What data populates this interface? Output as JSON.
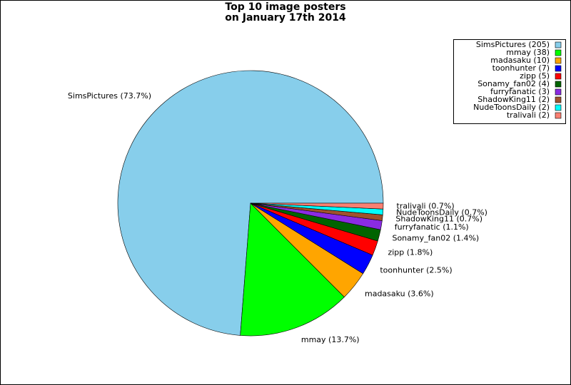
{
  "chart_data": {
    "type": "pie",
    "title": "Top 10 image posters",
    "subtitle": "on January 17th 2014",
    "categories": [
      "SimsPictures (205)",
      "mmay (38)",
      "madasaku (10)",
      "toonhunter (7)",
      "zipp (5)",
      "Sonamy_fan02 (4)",
      "furryfanatic (3)",
      "ShadowKing11 (2)",
      "NudeToonsDaily (2)",
      "tralivali (2)"
    ],
    "values": [
      73.7,
      13.7,
      3.6,
      2.5,
      1.8,
      1.4,
      1.1,
      0.7,
      0.7,
      0.7
    ],
    "value_labels": [
      "SimsPictures (73.7%)",
      "mmay (13.7%)",
      "madasaku (3.6%)",
      "toonhunter (2.5%)",
      "zipp (1.8%)",
      "Sonamy_fan02 (1.4%)",
      "furryfanatic (1.1%)",
      "ShadowKing11 (0.7%)",
      "NudeToonsDaily (0.7%)",
      "tralivali (0.7%)"
    ],
    "colors": [
      "#87ceeb",
      "#00ff00",
      "#ffa500",
      "#0000ff",
      "#ff0000",
      "#006400",
      "#8a2be2",
      "#a0522d",
      "#00ffff",
      "#fa8072"
    ],
    "legend": "upper right"
  }
}
